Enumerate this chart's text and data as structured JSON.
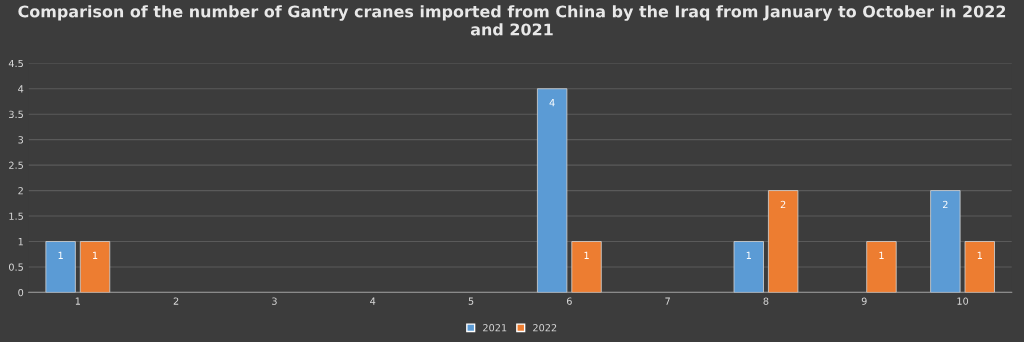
{
  "chart_data": {
    "type": "bar",
    "title": "Comparison of the number of Gantry cranes imported from China by the Iraq from January to October in 2022 and 2021",
    "categories": [
      "1",
      "2",
      "3",
      "4",
      "5",
      "6",
      "7",
      "8",
      "9",
      "10"
    ],
    "series": [
      {
        "name": "2021",
        "color": "#5b9bd5",
        "values": [
          1,
          null,
          null,
          null,
          null,
          4,
          null,
          1,
          null,
          2
        ]
      },
      {
        "name": "2022",
        "color": "#ed7d31",
        "values": [
          1,
          null,
          null,
          null,
          null,
          1,
          null,
          2,
          1,
          1
        ]
      }
    ],
    "ylim": [
      0,
      4.5
    ],
    "yticks": [
      0,
      0.5,
      1,
      1.5,
      2,
      2.5,
      3,
      3.5,
      4,
      4.5
    ],
    "grid": "y",
    "legend": "bottom",
    "data_labels": true
  }
}
